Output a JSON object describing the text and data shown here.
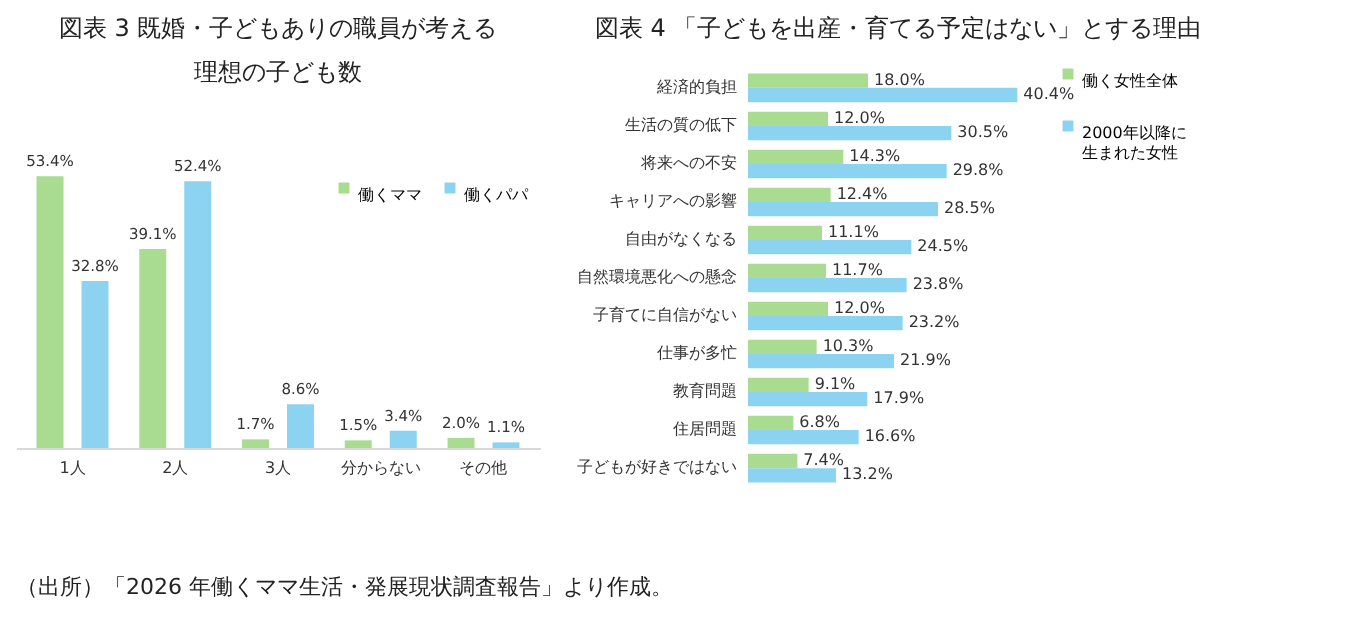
{
  "chart_data": [
    {
      "type": "bar",
      "title": "図表 3 既婚・子どもありの職員が考える理想の子ども数",
      "categories": [
        "1人",
        "2人",
        "3人",
        "分からない",
        "その他"
      ],
      "series": [
        {
          "name": "働くママ",
          "color": "#a9dc91",
          "values": [
            53.4,
            39.1,
            1.7,
            1.5,
            2.0
          ],
          "value_labels": [
            "53.4%",
            "39.1%",
            "1.7%",
            "1.5%",
            "2.0%"
          ]
        },
        {
          "name": "働くパパ",
          "color": "#8cd3f1",
          "values": [
            32.8,
            52.4,
            8.6,
            3.4,
            1.1
          ],
          "value_labels": [
            "32.8%",
            "52.4%",
            "8.6%",
            "3.4%",
            "1.1%"
          ]
        }
      ],
      "legend": "top right",
      "annotations": [
        "（出所）「2026 年働くママ生活・発展現状調査報告」より作成。"
      ]
    },
    {
      "type": "bar",
      "orientation": "horizontal",
      "title": "図表 4 「子どもを出産・育てる予定はない」とする理由",
      "categories": [
        "経済的負担",
        "生活の質の低下",
        "将来への不安",
        "キャリアへの影響",
        "自由がなくなる",
        "自然環境悪化への懸念",
        "子育てに自信がない",
        "仕事が多忙",
        "教育問題",
        "住居問題",
        "子どもが好きではない"
      ],
      "series": [
        {
          "name": "働く女性全体",
          "color": "#a9dc91",
          "values": [
            18.0,
            12.0,
            14.3,
            12.4,
            11.1,
            11.7,
            12.0,
            10.3,
            9.1,
            6.8,
            7.4
          ],
          "value_labels": [
            "18.0%",
            "12.0%",
            "14.3%",
            "12.4%",
            "11.1%",
            "11.7%",
            "12.0%",
            "10.3%",
            "9.1%",
            "6.8%",
            "7.4%"
          ]
        },
        {
          "name": "2000年以降に生まれた女性",
          "color": "#8cd3f1",
          "values": [
            40.4,
            30.5,
            29.8,
            28.5,
            24.5,
            23.8,
            23.2,
            21.9,
            17.9,
            16.6,
            13.2
          ],
          "value_labels": [
            "40.4%",
            "30.5%",
            "29.8%",
            "28.5%",
            "24.5%",
            "23.8%",
            "23.2%",
            "21.9%",
            "17.9%",
            "16.6%",
            "13.2%"
          ]
        }
      ],
      "legend": "right"
    }
  ]
}
